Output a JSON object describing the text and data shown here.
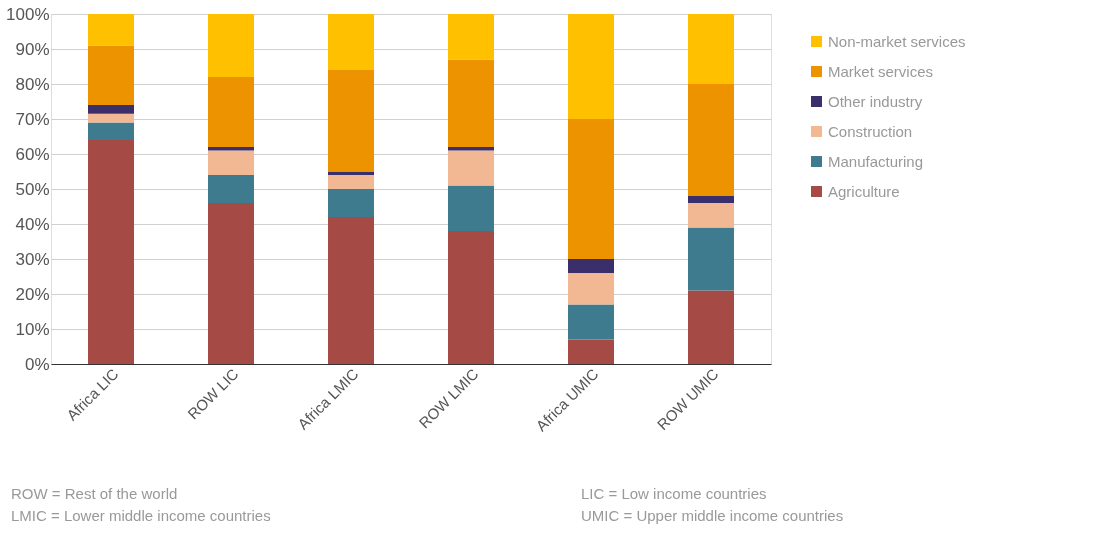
{
  "chart_data": {
    "type": "bar",
    "stacked": true,
    "categories": [
      "Africa LIC",
      "ROW LIC",
      "Africa LMIC",
      "ROW LMIC",
      "Africa UMIC",
      "ROW UMIC"
    ],
    "series": [
      {
        "name": "Agriculture",
        "color": "#a54a45",
        "values": [
          64,
          46,
          42,
          38,
          7,
          21
        ]
      },
      {
        "name": "Manufacturing",
        "color": "#3e7b8e",
        "values": [
          5,
          8,
          8,
          13,
          10,
          18
        ]
      },
      {
        "name": "Construction",
        "color": "#f2b894",
        "values": [
          2.5,
          7,
          4,
          10,
          9,
          7
        ]
      },
      {
        "name": "Other industry",
        "color": "#3a2f6b",
        "values": [
          2.5,
          1,
          1,
          1,
          4,
          2
        ]
      },
      {
        "name": "Market services",
        "color": "#ee9300",
        "values": [
          17,
          20,
          29,
          25,
          40,
          32
        ]
      },
      {
        "name": "Non-market services",
        "color": "#ffc000",
        "values": [
          9,
          18,
          16,
          13,
          30,
          20
        ]
      }
    ],
    "ylim": [
      0,
      100
    ],
    "yticks": [
      {
        "value": 0,
        "label": "0%"
      },
      {
        "value": 10,
        "label": "10%"
      },
      {
        "value": 20,
        "label": "20%"
      },
      {
        "value": 30,
        "label": "30%"
      },
      {
        "value": 40,
        "label": "40%"
      },
      {
        "value": 50,
        "label": "50%"
      },
      {
        "value": 60,
        "label": "60%"
      },
      {
        "value": 70,
        "label": "70%"
      },
      {
        "value": 80,
        "label": "80%"
      },
      {
        "value": 90,
        "label": "90%"
      },
      {
        "value": 100,
        "label": "100%"
      }
    ],
    "grid": "y",
    "legend": "right",
    "annotations": [
      "ROW = Rest of the world",
      "LIC = Low income countries",
      "LMIC = Lower middle income countries",
      "UMIC = Upper middle income countries"
    ]
  }
}
